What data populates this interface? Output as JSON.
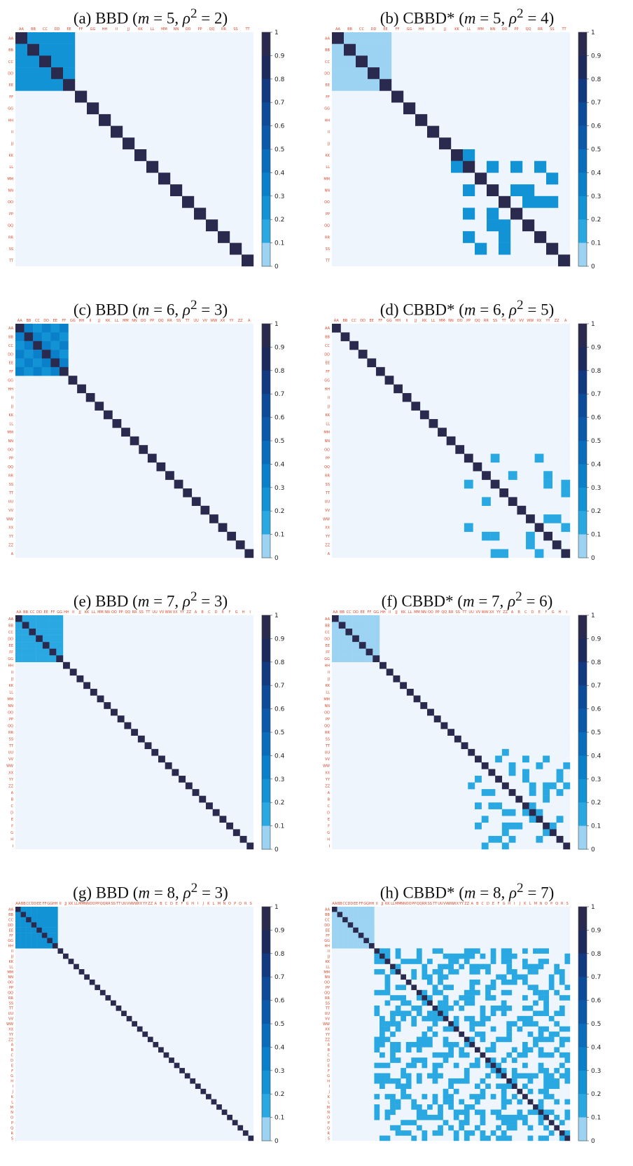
{
  "colors": {
    "background": "#eef5fc",
    "off_diagonal": "#1ba3e0",
    "off_diagonal_light": "#cde8f8",
    "diagonal": "#2a2a4e",
    "axis_label": "#e0452b"
  },
  "colorbar": {
    "ticks": [
      "1",
      "0.9",
      "0.8",
      "0.7",
      "0.6",
      "0.5",
      "0.4",
      "0.3",
      "0.2",
      "0.1",
      "0"
    ],
    "colors": [
      "#2a2a4e",
      "#1d2b5c",
      "#123a80",
      "#0c4b97",
      "#0a5aa9",
      "#0a6dbc",
      "#0b80ca",
      "#1293d6",
      "#2aa8e2",
      "#9dd3f2",
      "#eef5fc"
    ]
  },
  "chart_data": [
    {
      "type": "heatmap",
      "title": "(a) BBD (m = 5, ρ² = 2)",
      "title_parts": {
        "prefix": "(a) BBD (",
        "m": "m",
        "m_val": " = 5, ",
        "rho": "ρ",
        "sup": "2",
        "rho_val": " = 2)"
      },
      "m": 5,
      "rho2": 2,
      "size": 20,
      "block_start": 0,
      "block_end": 5,
      "block_value": 0.3,
      "pattern": "none",
      "pattern_value": 0.3,
      "diagonal_value": 1,
      "zlim": [
        0,
        1
      ]
    },
    {
      "type": "heatmap",
      "title": "(b) CBBD* (m = 5, ρ² = 4)",
      "title_parts": {
        "prefix": "(b) CBBD* (",
        "m": "m",
        "m_val": " = 5, ",
        "rho": "ρ",
        "sup": "2",
        "rho_val": " = 4)"
      },
      "m": 5,
      "rho2": 4,
      "size": 20,
      "block_start": 0,
      "block_end": 5,
      "block_value": 0.12,
      "pattern": "sparse",
      "pattern_start": 10,
      "pattern_value": 0.3,
      "diagonal_value": 1,
      "zlim": [
        0,
        1
      ]
    },
    {
      "type": "heatmap",
      "title": "(c) BBD (m = 6, ρ² = 3)",
      "title_parts": {
        "prefix": "(c) BBD (",
        "m": "m",
        "m_val": " = 6, ",
        "rho": "ρ",
        "sup": "2",
        "rho_val": " = 3)"
      },
      "m": 6,
      "rho2": 3,
      "size": 27,
      "block_start": 0,
      "block_end": 6,
      "block_value": 0.3,
      "pattern": "checker",
      "pattern_value": 0.4,
      "diagonal_value": 1,
      "zlim": [
        0,
        1
      ]
    },
    {
      "type": "heatmap",
      "title": "(d) CBBD* (m = 6, ρ² = 5)",
      "title_parts": {
        "prefix": "(d) CBBD* (",
        "m": "m",
        "m_val": " = 6, ",
        "rho": "ρ",
        "sup": "2",
        "rho_val": " = 5)"
      },
      "m": 6,
      "rho2": 5,
      "size": 27,
      "block_start": 0,
      "block_end": 0,
      "block_value": 0,
      "pattern": "sparse",
      "pattern_start": 15,
      "pattern_value": 0.25,
      "diagonal_value": 1,
      "zlim": [
        0,
        1
      ]
    },
    {
      "type": "heatmap",
      "title": "(e) BBD (m = 7, ρ² = 3)",
      "title_parts": {
        "prefix": "(e) BBD (",
        "m": "m",
        "m_val": " = 7, ",
        "rho": "ρ",
        "sup": "2",
        "rho_val": " = 3)"
      },
      "m": 7,
      "rho2": 3,
      "size": 35,
      "block_start": 0,
      "block_end": 7,
      "block_value": 0.25,
      "pattern": "none",
      "pattern_value": 0.25,
      "diagonal_value": 1,
      "zlim": [
        0,
        1
      ]
    },
    {
      "type": "heatmap",
      "title": "(f) CBBD* (m = 7, ρ² = 6)",
      "title_parts": {
        "prefix": "(f) CBBD* (",
        "m": "m",
        "m_val": " = 7, ",
        "rho": "ρ",
        "sup": "2",
        "rho_val": " = 6)"
      },
      "m": 7,
      "rho2": 6,
      "size": 35,
      "block_start": 0,
      "block_end": 7,
      "block_value": 0.12,
      "pattern": "sparse",
      "pattern_start": 20,
      "pattern_value": 0.25,
      "diagonal_value": 1,
      "zlim": [
        0,
        1
      ]
    },
    {
      "type": "heatmap",
      "title": "(g) BBD (m = 8, ρ² = 3)",
      "title_parts": {
        "prefix": "(g) BBD (",
        "m": "m",
        "m_val": " = 8, ",
        "rho": "ρ",
        "sup": "2",
        "rho_val": " = 3)"
      },
      "m": 8,
      "rho2": 3,
      "size": 45,
      "block_start": 0,
      "block_end": 8,
      "block_value": 0.3,
      "pattern": "checker",
      "pattern_value": 0.35,
      "diagonal_value": 1,
      "zlim": [
        0,
        1
      ]
    },
    {
      "type": "heatmap",
      "title": "(h) CBBD* (m = 8, ρ² = 7)",
      "title_parts": {
        "prefix": "(h) CBBD* (",
        "m": "m",
        "m_val": " = 8, ",
        "rho": "ρ",
        "sup": "2",
        "rho_val": " = 7)"
      },
      "m": 8,
      "rho2": 7,
      "size": 45,
      "block_start": 0,
      "block_end": 8,
      "block_value": 0.12,
      "pattern": "dense",
      "pattern_start": 8,
      "pattern_value": 0.25,
      "diagonal_value": 1,
      "zlim": [
        0,
        1
      ]
    }
  ]
}
